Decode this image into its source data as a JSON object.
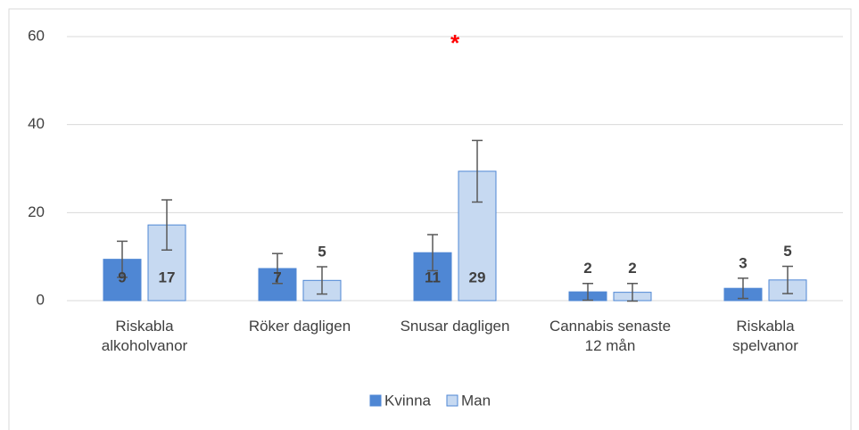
{
  "chart_data": {
    "type": "bar",
    "categories": [
      "Riskabla\nalkoholvanor",
      "Röker dagligen",
      "Snusar dagligen",
      "Cannabis senaste\n12 mån",
      "Riskabla\nspelvanor"
    ],
    "series": [
      {
        "name": "Kvinna",
        "color": "#4f87d4",
        "values": [
          9.4,
          7.3,
          10.9,
          2.0,
          2.8
        ],
        "value_labels": [
          "9",
          "7",
          "11",
          "2",
          "3"
        ],
        "errors": [
          4.1,
          3.4,
          4.1,
          1.9,
          2.3
        ]
      },
      {
        "name": "Man",
        "color": "#c6d9f1",
        "values": [
          17.2,
          4.6,
          29.4,
          1.9,
          4.7
        ],
        "value_labels": [
          "17",
          "5",
          "29",
          "2",
          "5"
        ],
        "errors": [
          5.7,
          3.1,
          7.0,
          2.0,
          3.1
        ]
      }
    ],
    "ylim": [
      0,
      60
    ],
    "yticks": [
      0,
      20,
      40,
      60
    ],
    "grid": true,
    "legend": "bottom",
    "annotations": [
      {
        "text": "*",
        "category": 2,
        "color": "#ff0000"
      }
    ]
  }
}
